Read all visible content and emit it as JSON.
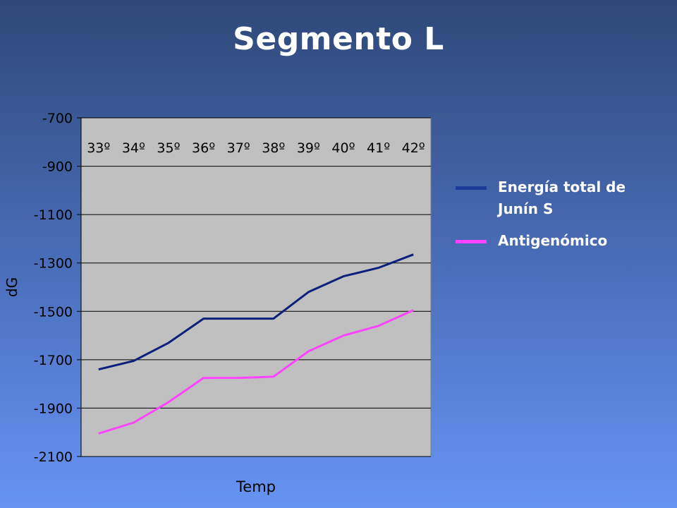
{
  "slide": {
    "title": "Segmento L"
  },
  "colors": {
    "plot_bg": "#c0c0c0",
    "series1": "#0c1f7a",
    "series2": "#ff44ff",
    "legend1": "#1c3a9a",
    "legend2": "#ff44ff"
  },
  "chart_data": {
    "type": "line",
    "title": "",
    "xlabel": "Temp",
    "ylabel": "dG",
    "categories": [
      "33º",
      "34º",
      "35º",
      "36º",
      "37º",
      "38º",
      "39º",
      "40º",
      "41º",
      "42º"
    ],
    "ylim": [
      -2100,
      -700
    ],
    "yticks": [
      "-700",
      "-900",
      "-1100",
      "-1300",
      "-1500",
      "-1700",
      "-1900",
      "-2100"
    ],
    "x_tick_position": "top-inside",
    "grid": true,
    "legend": "right",
    "series": [
      {
        "name": "Energía total de Junín S",
        "values": [
          -1740,
          -1705,
          -1630,
          -1530,
          -1530,
          -1530,
          -1420,
          -1355,
          -1320,
          -1265
        ]
      },
      {
        "name": "Antigenómico",
        "values": [
          -2005,
          -1960,
          -1875,
          -1775,
          -1775,
          -1770,
          -1665,
          -1600,
          -1560,
          -1495
        ]
      }
    ]
  }
}
